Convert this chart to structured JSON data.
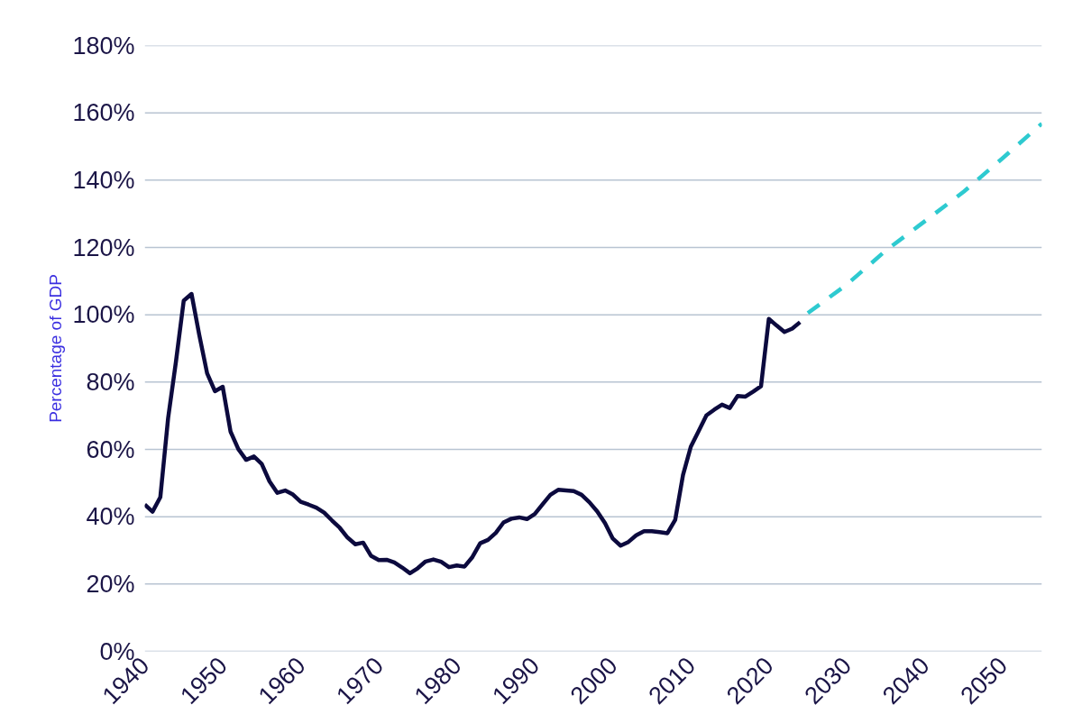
{
  "chart_data": {
    "type": "line",
    "ylabel": "Percentage of GDP",
    "xlim": [
      1940,
      2055
    ],
    "xticks": [
      1940,
      1950,
      1960,
      1970,
      1980,
      1990,
      2000,
      2010,
      2020,
      2030,
      2040,
      2050
    ],
    "ylim": [
      0,
      180
    ],
    "yticks": [
      {
        "value": 0,
        "label": "0%"
      },
      {
        "value": 20,
        "label": "20%"
      },
      {
        "value": 40,
        "label": "40%"
      },
      {
        "value": 60,
        "label": "60%"
      },
      {
        "value": 80,
        "label": "80%"
      },
      {
        "value": 100,
        "label": "100%"
      },
      {
        "value": 120,
        "label": "120%"
      },
      {
        "value": 140,
        "label": "140%"
      },
      {
        "value": 160,
        "label": "160%"
      },
      {
        "value": 180,
        "label": "180%"
      }
    ],
    "grid": "y",
    "series": [
      {
        "color": "#0c0a3e",
        "line_style": "solid",
        "x": [
          1940,
          1941,
          1942,
          1943,
          1944,
          1945,
          1946,
          1947,
          1948,
          1949,
          1950,
          1951,
          1952,
          1953,
          1954,
          1955,
          1956,
          1957,
          1958,
          1959,
          1960,
          1961,
          1962,
          1963,
          1964,
          1965,
          1966,
          1967,
          1968,
          1969,
          1970,
          1971,
          1972,
          1973,
          1974,
          1975,
          1976,
          1977,
          1978,
          1979,
          1980,
          1981,
          1982,
          1983,
          1984,
          1985,
          1986,
          1987,
          1988,
          1989,
          1990,
          1991,
          1992,
          1993,
          1994,
          1995,
          1996,
          1997,
          1998,
          1999,
          2000,
          2001,
          2002,
          2003,
          2004,
          2005,
          2006,
          2007,
          2008,
          2009,
          2010,
          2011,
          2012,
          2013,
          2014,
          2015,
          2016,
          2017,
          2018,
          2019,
          2020,
          2021,
          2022,
          2023,
          2024
        ],
        "values": [
          43.6,
          41.5,
          45.8,
          69.3,
          86.0,
          104.2,
          106.2,
          93.9,
          82.6,
          77.3,
          78.6,
          65.3,
          60.1,
          56.9,
          57.9,
          55.7,
          50.5,
          47.1,
          47.8,
          46.6,
          44.4,
          43.6,
          42.7,
          41.2,
          38.9,
          36.7,
          33.8,
          31.8,
          32.3,
          28.4,
          27.1,
          27.2,
          26.4,
          24.9,
          23.2,
          24.7,
          26.7,
          27.3,
          26.6,
          25.0,
          25.5,
          25.2,
          28.0,
          32.1,
          33.1,
          35.2,
          38.3,
          39.4,
          39.8,
          39.3,
          40.8,
          43.7,
          46.5,
          48.0,
          47.8,
          47.6,
          46.5,
          44.3,
          41.6,
          38.1,
          33.5,
          31.4,
          32.5,
          34.5,
          35.7,
          35.7,
          35.4,
          35.1,
          39.1,
          52.4,
          60.8,
          65.4,
          70.1,
          71.8,
          73.3,
          72.3,
          75.9,
          75.7,
          77.2,
          78.8,
          98.8,
          96.8,
          94.9,
          95.9,
          97.8
        ]
      },
      {
        "color": "#2ecad0",
        "line_style": "dashed",
        "x": [
          2025,
          2030,
          2035,
          2040,
          2045,
          2050,
          2055
        ],
        "values": [
          100.5,
          109.0,
          119.1,
          127.8,
          136.6,
          146.6,
          156.8
        ]
      }
    ]
  }
}
